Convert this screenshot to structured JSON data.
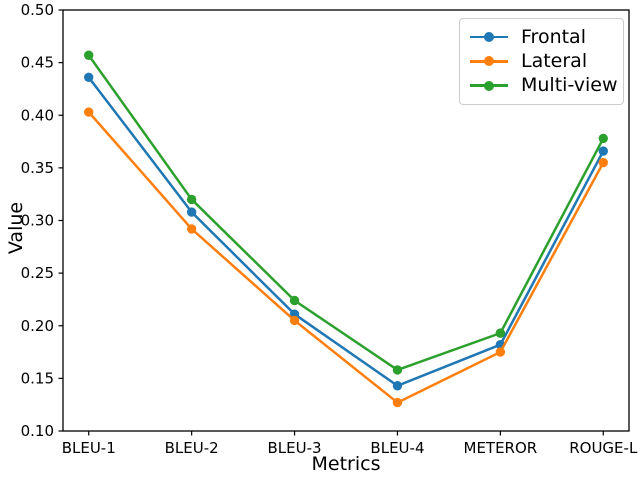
{
  "figure": {
    "background": "#ffffff",
    "axis_color": "#000000"
  },
  "chart_data": {
    "type": "line",
    "title": "",
    "xlabel": "Metrics",
    "ylabel": "Value",
    "categories": [
      "BLEU-1",
      "BLEU-2",
      "BLEU-3",
      "BLEU-4",
      "METEROR",
      "ROUGE-L"
    ],
    "series": [
      {
        "name": "Frontal",
        "color": "#1f77b4",
        "values": [
          0.436,
          0.308,
          0.211,
          0.143,
          0.182,
          0.366
        ]
      },
      {
        "name": "Lateral",
        "color": "#ff7f0e",
        "values": [
          0.403,
          0.292,
          0.205,
          0.127,
          0.175,
          0.355
        ]
      },
      {
        "name": "Multi-view",
        "color": "#2ca02c",
        "values": [
          0.457,
          0.32,
          0.224,
          0.158,
          0.193,
          0.378
        ]
      }
    ],
    "ylim": [
      0.1,
      0.5
    ],
    "yticks": [
      0.1,
      0.15,
      0.2,
      0.25,
      0.3,
      0.35,
      0.4,
      0.45,
      0.5
    ],
    "ytick_format_decimals": 2,
    "grid": false,
    "legend_position": "upper right",
    "marker": "circle",
    "line_style": "solid"
  }
}
